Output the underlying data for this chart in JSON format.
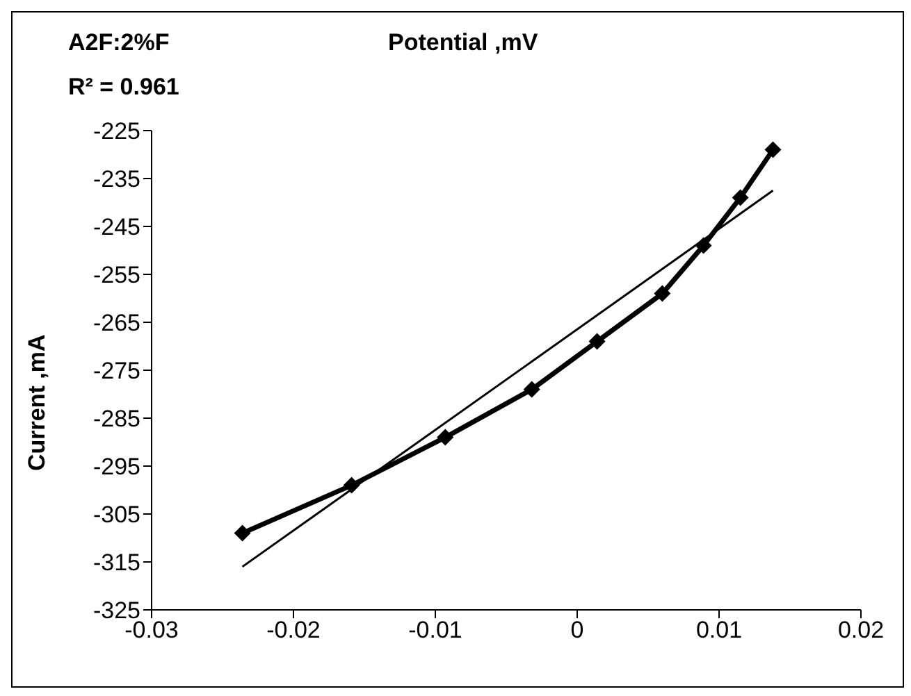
{
  "chart_data": {
    "type": "line",
    "title": "Potential ,mV",
    "ylabel": "Current ,mA",
    "annotations": [
      "A2F:2%F",
      "R² = 0.961"
    ],
    "xlim": [
      -0.03,
      0.02
    ],
    "xticks": [
      -0.03,
      -0.02,
      -0.01,
      0,
      0.01,
      0.02
    ],
    "ylim": [
      -325,
      -225
    ],
    "yticks": [
      -325,
      -315,
      -305,
      -295,
      -285,
      -275,
      -265,
      -255,
      -245,
      -235,
      -225
    ],
    "series": [
      {
        "color": "#000000",
        "marker": "diamond",
        "x": [
          -0.0236,
          -0.0159,
          -0.0093,
          -0.0032,
          0.0014,
          0.006,
          0.0089,
          0.0115,
          0.0138
        ],
        "values": [
          -309,
          -299,
          -289,
          -279,
          -269,
          -259,
          -249,
          -239,
          -229
        ]
      },
      {
        "color": "#000000",
        "marker": "none",
        "x": [
          -0.0236,
          0.0138
        ],
        "values": [
          -316,
          -237.5
        ]
      }
    ]
  }
}
